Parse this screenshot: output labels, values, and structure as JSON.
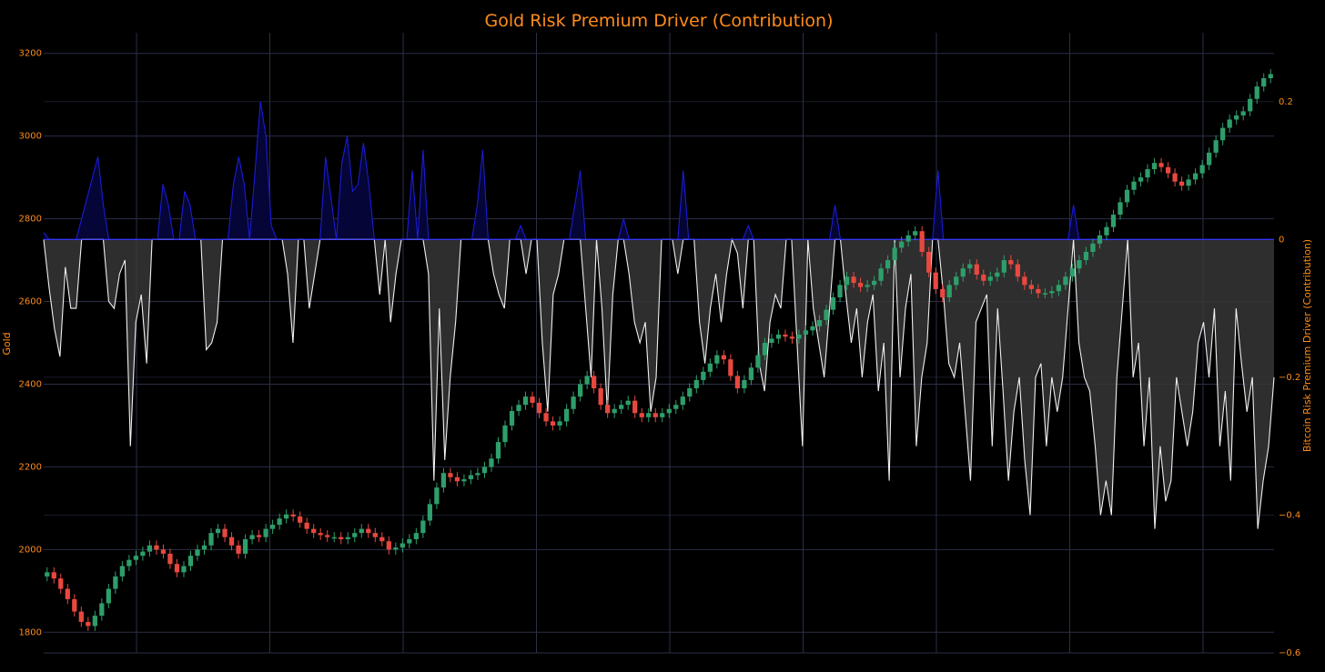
{
  "chart_data": {
    "type": "line",
    "title": "Gold Risk Premium Driver (Contribution)",
    "ylabel": "Gold",
    "y2label": "Bitcoin Risk Premium Driver (Contribution)",
    "ylim": [
      1750,
      3250
    ],
    "y2lim": [
      -0.6,
      0.3
    ],
    "y_ticks": [
      1800,
      2000,
      2200,
      2400,
      2600,
      2800,
      3000,
      3200
    ],
    "y2_ticks": [
      -0.6,
      -0.4,
      -0.2,
      0,
      0.2
    ],
    "y2_tick_labels": [
      "−0.6",
      "−0.4",
      "−0.2",
      "0",
      "0.2"
    ],
    "grid": true,
    "legend": "none",
    "colors": {
      "background": "#000000",
      "grid": "#2a2f45",
      "text": "#ff8c1a",
      "positive_area": "#05053a",
      "positive_line": "#1b1bd6",
      "negative_area": "#363636",
      "negative_line": "#f0f0f0",
      "zero_line": "#3a3aff",
      "candle_up": "#2e9e6a",
      "candle_down": "#e8483f"
    },
    "series": [
      {
        "kind": "candlestick",
        "axis": "y",
        "close": [
          1945,
          1930,
          1905,
          1880,
          1850,
          1825,
          1815,
          1840,
          1870,
          1905,
          1935,
          1960,
          1975,
          1985,
          1995,
          2010,
          2000,
          1990,
          1965,
          1945,
          1960,
          1985,
          2000,
          2010,
          2040,
          2050,
          2030,
          2010,
          1990,
          2025,
          2035,
          2030,
          2050,
          2060,
          2075,
          2085,
          2080,
          2065,
          2050,
          2040,
          2035,
          2030,
          2030,
          2025,
          2030,
          2040,
          2050,
          2040,
          2030,
          2020,
          2000,
          2005,
          2015,
          2025,
          2040,
          2070,
          2110,
          2150,
          2185,
          2175,
          2165,
          2170,
          2180,
          2185,
          2200,
          2220,
          2260,
          2300,
          2335,
          2350,
          2370,
          2355,
          2330,
          2310,
          2300,
          2310,
          2340,
          2370,
          2400,
          2420,
          2390,
          2350,
          2330,
          2340,
          2350,
          2360,
          2330,
          2320,
          2330,
          2320,
          2330,
          2340,
          2350,
          2370,
          2390,
          2410,
          2430,
          2450,
          2470,
          2460,
          2420,
          2390,
          2410,
          2440,
          2470,
          2500,
          2510,
          2520,
          2515,
          2510,
          2520,
          2530,
          2540,
          2555,
          2580,
          2610,
          2640,
          2660,
          2645,
          2635,
          2640,
          2650,
          2680,
          2700,
          2730,
          2745,
          2760,
          2770,
          2720,
          2670,
          2630,
          2610,
          2640,
          2660,
          2680,
          2690,
          2665,
          2650,
          2660,
          2670,
          2700,
          2690,
          2660,
          2640,
          2630,
          2620,
          2620,
          2625,
          2640,
          2660,
          2680,
          2700,
          2720,
          2740,
          2760,
          2780,
          2810,
          2840,
          2870,
          2890,
          2900,
          2920,
          2935,
          2925,
          2910,
          2890,
          2880,
          2895,
          2910,
          2930,
          2960,
          2990,
          3020,
          3040,
          3050,
          3060,
          3090,
          3120,
          3140,
          3150
        ]
      },
      {
        "kind": "area-line",
        "axis": "y2",
        "x_start": "2024-01",
        "values": [
          0.01,
          -0.07,
          -0.13,
          -0.17,
          -0.04,
          -0.1,
          -0.1,
          0.03,
          0.06,
          0.09,
          0.12,
          0.05,
          -0.09,
          -0.1,
          -0.05,
          -0.03,
          -0.3,
          -0.12,
          -0.08,
          -0.18,
          0.0,
          0.0,
          0.08,
          0.05,
          0.0,
          0.0,
          0.07,
          0.05,
          0.0,
          0.0,
          -0.16,
          -0.15,
          -0.12,
          0.0,
          0.0,
          0.08,
          0.12,
          0.08,
          0.0,
          0.1,
          0.2,
          0.15,
          0.02,
          0.0,
          0.0,
          -0.05,
          -0.15,
          0.0,
          0.0,
          -0.1,
          -0.05,
          0.0,
          0.12,
          0.06,
          0.0,
          0.11,
          0.15,
          0.07,
          0.08,
          0.14,
          0.08,
          0.0,
          -0.08,
          0.0,
          -0.12,
          -0.05,
          0.0,
          0.0,
          0.1,
          0.0,
          0.13,
          -0.05,
          -0.35,
          -0.1,
          -0.32,
          -0.2,
          -0.12,
          0.0,
          0.0,
          0.0,
          0.05,
          0.13,
          0.0,
          -0.05,
          -0.08,
          -0.1,
          0.0,
          0.0,
          0.02,
          -0.05,
          0.0,
          0.0,
          -0.15,
          -0.25,
          -0.08,
          -0.05,
          0.0,
          0.0,
          0.05,
          0.1,
          -0.1,
          -0.2,
          0.0,
          -0.1,
          -0.25,
          -0.08,
          0.0,
          0.03,
          -0.05,
          -0.12,
          -0.15,
          -0.12,
          -0.25,
          -0.2,
          0.0,
          0.0,
          0.0,
          -0.05,
          0.1,
          0.0,
          0.0,
          -0.12,
          -0.18,
          -0.1,
          -0.05,
          -0.12,
          -0.05,
          0.0,
          -0.02,
          -0.1,
          0.02,
          0.0,
          -0.18,
          -0.22,
          -0.12,
          -0.08,
          -0.1,
          0.0,
          0.0,
          -0.15,
          -0.3,
          0.0,
          -0.1,
          -0.15,
          -0.2,
          -0.1,
          0.05,
          0.0,
          -0.08,
          -0.15,
          -0.1,
          -0.2,
          -0.12,
          -0.08,
          -0.22,
          -0.15,
          -0.35,
          0.0,
          -0.2,
          -0.1,
          -0.05,
          -0.3,
          -0.2,
          -0.15,
          0.0,
          0.1,
          -0.08,
          -0.18,
          -0.2,
          -0.15,
          -0.25,
          -0.35,
          -0.12,
          -0.1,
          -0.08,
          -0.3,
          -0.1,
          -0.22,
          -0.35,
          -0.25,
          -0.2,
          -0.32,
          -0.4,
          -0.2,
          -0.18,
          -0.3,
          -0.2,
          -0.25,
          -0.2,
          -0.1,
          0.05,
          -0.15,
          -0.2,
          -0.22,
          -0.3,
          -0.4,
          -0.35,
          -0.4,
          -0.2,
          -0.1,
          0.0,
          -0.2,
          -0.15,
          -0.3,
          -0.2,
          -0.42,
          -0.3,
          -0.38,
          -0.35,
          -0.2,
          -0.25,
          -0.3,
          -0.25,
          -0.15,
          -0.12,
          -0.2,
          -0.1,
          -0.3,
          -0.22,
          -0.35,
          -0.1,
          -0.18,
          -0.25,
          -0.2,
          -0.42,
          -0.35,
          -0.3,
          -0.2
        ]
      }
    ]
  }
}
